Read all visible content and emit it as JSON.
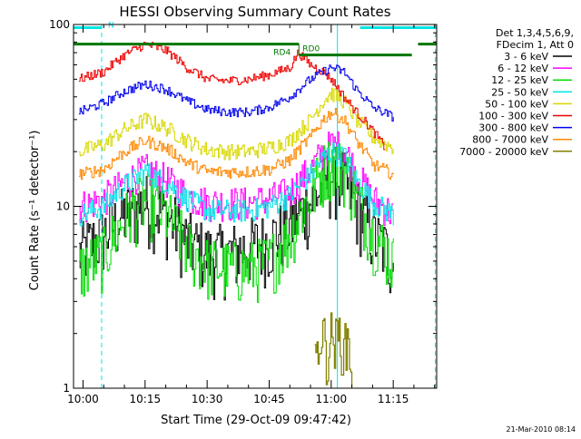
{
  "chart_data": {
    "type": "line",
    "title": "HESSI Observing Summary Count Rates",
    "xlabel": "Start Time (29-Oct-09 09:47:42)",
    "ylabel": "Count Rate (s⁻¹ detector⁻¹)",
    "yscale": "log",
    "ylim": [
      1,
      100
    ],
    "xlim_minutes": [
      -2.3,
      85.5
    ],
    "grid": false,
    "legend_position": "top-right, outside plot",
    "legend_header": [
      "Det 1,3,4,5,6,9,",
      "FDecim 1, Att 0"
    ],
    "xticks": [
      {
        "minutes": 0,
        "label": "10:00"
      },
      {
        "minutes": 15,
        "label": "10:15"
      },
      {
        "minutes": 30,
        "label": "10:30"
      },
      {
        "minutes": 45,
        "label": "10:45"
      },
      {
        "minutes": 60,
        "label": "11:00"
      },
      {
        "minutes": 75,
        "label": "11:15"
      }
    ],
    "yticks": [
      {
        "value": 1,
        "label": "1"
      },
      {
        "value": 10,
        "label": "10"
      },
      {
        "value": 100,
        "label": "100"
      }
    ],
    "series": [
      {
        "name": "3 - 6 keV",
        "color": "#000000",
        "x": [
          -1,
          5,
          10,
          15,
          20,
          25,
          30,
          35,
          40,
          45,
          50,
          55,
          58,
          60,
          63,
          66,
          70,
          75
        ],
        "y": [
          5.5,
          7,
          9,
          10.5,
          9,
          6.5,
          5.5,
          5.5,
          6,
          6.5,
          8,
          10.5,
          13,
          15,
          14,
          10,
          7,
          5
        ]
      },
      {
        "name": "6 - 12 keV",
        "color": "#ff00ff",
        "x": [
          -1,
          5,
          10,
          15,
          20,
          25,
          30,
          35,
          40,
          45,
          50,
          55,
          58,
          60,
          63,
          66,
          70,
          75
        ],
        "y": [
          10,
          11,
          13.5,
          16,
          14,
          11.5,
          10.5,
          10.5,
          10.5,
          11,
          12,
          16,
          20,
          22,
          21,
          15,
          11,
          9
        ]
      },
      {
        "name": "12 - 25 keV",
        "color": "#00dd00",
        "x": [
          -1,
          5,
          10,
          15,
          20,
          25,
          30,
          35,
          40,
          45,
          50,
          55,
          58,
          60,
          63,
          66,
          70,
          75
        ],
        "y": [
          4.5,
          5.5,
          8.5,
          11,
          9,
          6,
          4.8,
          4.6,
          4.6,
          5,
          7,
          11.5,
          16,
          18,
          16,
          11,
          7,
          5
        ]
      },
      {
        "name": "25 - 50 keV",
        "color": "#00e5e5",
        "x": [
          -1,
          5,
          10,
          15,
          20,
          25,
          30,
          35,
          40,
          45,
          50,
          55,
          58,
          60,
          63,
          66,
          70,
          75
        ],
        "y": [
          9,
          10,
          13,
          15.5,
          13.5,
          11,
          9.5,
          9.5,
          9.5,
          10,
          11.5,
          15,
          18.5,
          20,
          19,
          14,
          10.5,
          9
        ]
      },
      {
        "name": "50 - 100 keV",
        "color": "#d8d800",
        "x": [
          -1,
          5,
          10,
          15,
          20,
          25,
          30,
          35,
          40,
          45,
          50,
          55,
          58,
          60,
          63,
          66,
          70,
          75
        ],
        "y": [
          20,
          22,
          26.5,
          30,
          27,
          23,
          20.5,
          20,
          20,
          21,
          23,
          30,
          38,
          42,
          38,
          30,
          24,
          21
        ]
      },
      {
        "name": "100 - 300 keV",
        "color": "#ee0000",
        "x": [
          -1,
          5,
          10,
          15,
          20,
          25,
          30,
          35,
          40,
          45,
          50,
          52,
          55,
          58,
          60,
          63,
          66,
          70,
          73
        ],
        "y": [
          50,
          55,
          68,
          78,
          72,
          58,
          50,
          49,
          50,
          53,
          58,
          70,
          60,
          55,
          50,
          40,
          33,
          26,
          21
        ]
      },
      {
        "name": "300 - 800 keV",
        "color": "#0000ee",
        "x": [
          -1,
          5,
          10,
          15,
          20,
          25,
          30,
          35,
          40,
          45,
          50,
          55,
          58,
          60,
          63,
          66,
          70,
          75
        ],
        "y": [
          33,
          37,
          43,
          47,
          44,
          38,
          34,
          33,
          33,
          35,
          40,
          50,
          55,
          58,
          55,
          44,
          35,
          31
        ]
      },
      {
        "name": "800 - 7000 keV",
        "color": "#ff8800",
        "x": [
          -1,
          5,
          10,
          15,
          20,
          25,
          30,
          35,
          40,
          45,
          50,
          55,
          58,
          60,
          63,
          66,
          70,
          75
        ],
        "y": [
          15,
          16,
          20,
          23,
          21,
          17.5,
          15.5,
          15.5,
          15.5,
          16,
          18,
          24,
          30,
          33,
          30,
          23,
          17,
          15
        ]
      },
      {
        "name": "7000 - 20000 keV",
        "color": "#808000",
        "x": [
          56,
          57,
          58,
          59,
          60,
          61,
          62,
          63,
          64,
          65
        ],
        "y": [
          1.3,
          1.9,
          2,
          1.5,
          2,
          1.8,
          2,
          1.6,
          1.9,
          1.2
        ]
      }
    ],
    "annotations": {
      "flags": [
        {
          "label": "N",
          "color": "#00e5e5",
          "value": 96,
          "segments": [
            [
              -2.3,
              4.5
            ],
            [
              67,
              85.5
            ]
          ]
        },
        {
          "label": "RD0",
          "color": "#007700",
          "value": 68,
          "segments": [
            [
              52.2,
              79.5
            ]
          ]
        },
        {
          "label": "RD4",
          "color": "#007700",
          "segments": [
            [
              -2.3,
              52.2
            ],
            [
              81,
              85.5
            ]
          ],
          "value": 78
        }
      ],
      "saa_lines_minutes": [
        -2.3,
        61.5
      ],
      "night_lines_minutes": [
        4.5,
        85.2
      ],
      "footer_date": "21-Mar-2010 08:14"
    }
  }
}
